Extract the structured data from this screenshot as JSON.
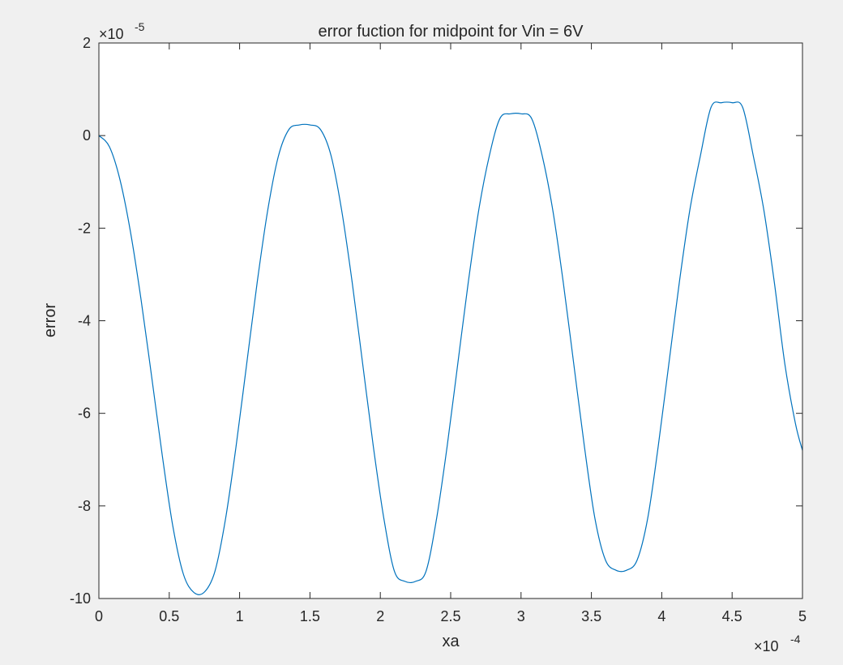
{
  "colors": {
    "figure_bg": "#f0f0f0",
    "axes_bg": "#ffffff",
    "axis": "#262626",
    "series": "#0072bd"
  },
  "chart_data": {
    "type": "line",
    "title": "error fuction for midpoint for Vin = 6V",
    "xlabel": "xa",
    "ylabel": "error",
    "xlim": [
      0,
      0.0005
    ],
    "ylim": [
      -0.0001,
      2e-05
    ],
    "x_exponent_label": "×10",
    "x_exponent": "-4",
    "y_exponent_label": "×10",
    "y_exponent": "-5",
    "xticks": [
      0,
      5e-05,
      0.0001,
      0.00015,
      0.0002,
      0.00025,
      0.0003,
      0.00035,
      0.0004,
      0.00045,
      0.0005
    ],
    "xtick_labels": [
      "0",
      "0.5",
      "1",
      "1.5",
      "2",
      "2.5",
      "3",
      "3.5",
      "4",
      "4.5",
      "5"
    ],
    "yticks": [
      2e-05,
      0,
      -2e-05,
      -4e-05,
      -6e-05,
      -8e-05,
      -0.0001
    ],
    "ytick_labels": [
      "2",
      "0",
      "-2",
      "-4",
      "-6",
      "-8",
      "-10"
    ],
    "grid": false,
    "series": [
      {
        "color": "#0072bd",
        "x": [
          0,
          7.5e-06,
          1.5e-05,
          2.25e-05,
          3e-05,
          3.75e-05,
          4.5e-05,
          5.25e-05,
          6e-05,
          6.75e-05,
          7.5e-05,
          8.25e-05,
          9e-05,
          9.75e-05,
          0.000105,
          0.0001125,
          0.00012,
          0.0001275,
          0.000135,
          0.0001425,
          0.00015,
          0.0001575,
          0.000165,
          0.0001725,
          0.00018,
          0.0001875,
          0.000195,
          0.0002025,
          0.00021,
          0.0002175,
          0.000225,
          0.0002325,
          0.00024,
          0.0002475,
          0.000255,
          0.0002625,
          0.00027,
          0.0002775,
          0.000285,
          0.0002925,
          0.0003,
          0.0003075,
          0.000315,
          0.0003225,
          0.00033,
          0.0003375,
          0.000345,
          0.0003525,
          0.00036,
          0.0003675,
          0.000375,
          0.0003825,
          0.00039,
          0.0003975,
          0.000405,
          0.0004125,
          0.00042,
          0.0004275,
          0.000435,
          0.0004425,
          0.00045,
          0.0004575,
          0.000465,
          0.0004725,
          0.00048,
          0.0004875,
          0.000495,
          0.0005
        ],
        "y": [
          0,
          -2.42e-06,
          -9.55e-06,
          -2.09e-05,
          -3.55e-05,
          -5.21e-05,
          -6.9e-05,
          -8.43e-05,
          -9.47e-05,
          -9.87e-05,
          -9.86e-05,
          -9.41e-05,
          -8.28e-05,
          -6.71e-05,
          -4.94e-05,
          -3.17e-05,
          -1.61e-05,
          -4.52e-06,
          1.3e-06,
          2.3e-06,
          2.3e-06,
          1.3e-06,
          -4.35e-06,
          -1.61e-05,
          -3.17e-05,
          -4.94e-05,
          -6.71e-05,
          -8.27e-05,
          -9.41e-05,
          -9.63e-05,
          -9.63e-05,
          -9.41e-05,
          -8.27e-05,
          -6.71e-05,
          -4.94e-05,
          -3.17e-05,
          -1.6e-05,
          -4.32e-06,
          3.7e-06,
          4.7e-06,
          4.7e-06,
          3.7e-06,
          -4.3e-06,
          -1.6e-05,
          -3.17e-05,
          -4.94e-05,
          -6.71e-05,
          -8.27e-05,
          -9.17e-05,
          -9.39e-05,
          -9.39e-05,
          -9.17e-05,
          -8.27e-05,
          -6.71e-05,
          -4.94e-05,
          -3.17e-05,
          -1.6e-05,
          -4.3e-06,
          6.1e-06,
          7.1e-06,
          7.1e-06,
          6.1e-06,
          -4.3e-06,
          -1.6e-05,
          -3.17e-05,
          -4.94e-05,
          -6.22e-05,
          -6.8e-05
        ]
      }
    ]
  }
}
